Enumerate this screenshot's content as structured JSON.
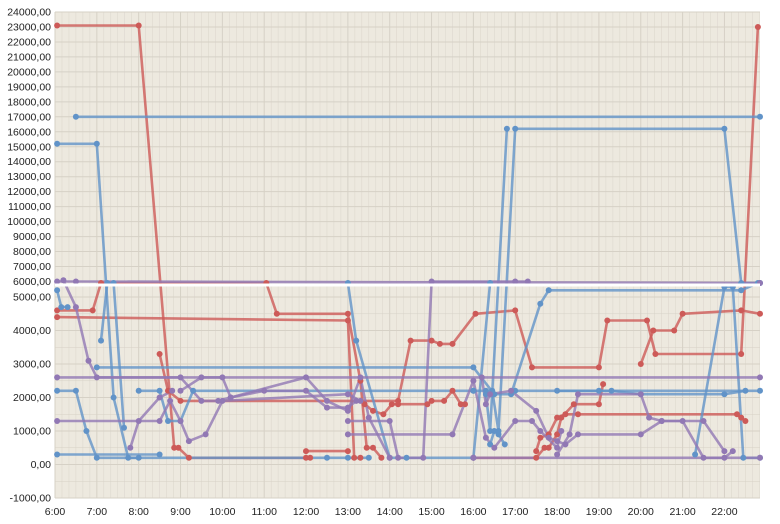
{
  "chart_data": {
    "type": "line",
    "title": "",
    "xlabel": "",
    "ylabel": "",
    "axis_break": {
      "lower_max": 5000,
      "upper_min": 6000
    },
    "y_ticks_upper": [
      "6000,00",
      "7000,00",
      "8000,00",
      "9000,00",
      "10000,00",
      "11000,00",
      "12000,00",
      "13000,00",
      "14000,00",
      "15000,00",
      "16000,00",
      "17000,00",
      "18000,00",
      "19000,00",
      "20000,00",
      "21000,00",
      "22000,00",
      "23000,00",
      "24000,00"
    ],
    "y_ticks_lower": [
      "-1000,00",
      "0,00",
      "1000,00",
      "2000,00",
      "3000,00",
      "4000,00",
      "5000,00"
    ],
    "x_ticks": [
      "6:00",
      "7:00",
      "8:00",
      "9:00",
      "10:00",
      "11:00",
      "12:00",
      "13:00",
      "14:00",
      "15:00",
      "16:00",
      "17:00",
      "18:00",
      "19:00",
      "20:00",
      "21:00",
      "22:00"
    ],
    "ylim_upper": [
      5900,
      24000
    ],
    "ylim_lower": [
      -1000,
      5300
    ],
    "xlim_hours": [
      6,
      22.85
    ],
    "grid": true,
    "legend": "none",
    "colors": {
      "red": "#cd5a58",
      "blue": "#6193c8",
      "purple": "#9178b4",
      "background": "#ede9df",
      "grid": "#d6d1c6"
    },
    "series": [
      {
        "color": "red",
        "points": [
          [
            6.05,
            23100
          ],
          [
            8.0,
            23100
          ],
          [
            8.85,
            500
          ],
          [
            8.95,
            500
          ],
          [
            9.2,
            200
          ],
          [
            12.0,
            200
          ],
          [
            12.1,
            200
          ]
        ]
      },
      {
        "color": "red",
        "points": [
          [
            6.05,
            4600
          ],
          [
            6.9,
            4600
          ],
          [
            7.1,
            5900
          ],
          [
            11.05,
            5900
          ],
          [
            11.3,
            4500
          ],
          [
            13.0,
            4500
          ],
          [
            13.3,
            2500
          ],
          [
            13.45,
            500
          ],
          [
            13.6,
            500
          ],
          [
            13.8,
            200
          ]
        ]
      },
      {
        "color": "red",
        "points": [
          [
            6.05,
            4400
          ],
          [
            13.0,
            4300
          ],
          [
            13.15,
            200
          ],
          [
            13.3,
            200
          ]
        ]
      },
      {
        "color": "red",
        "points": [
          [
            8.5,
            3300
          ],
          [
            8.7,
            2200
          ],
          [
            9.0,
            1900
          ],
          [
            14.2,
            1900
          ],
          [
            14.5,
            3700
          ],
          [
            15.0,
            3700
          ],
          [
            15.2,
            3600
          ],
          [
            15.5,
            3600
          ],
          [
            16.05,
            4500
          ],
          [
            17.0,
            4600
          ],
          [
            17.4,
            2900
          ],
          [
            19.0,
            2900
          ],
          [
            19.2,
            4300
          ],
          [
            20.15,
            4300
          ],
          [
            20.35,
            3300
          ],
          [
            22.4,
            3300
          ],
          [
            22.8,
            23000
          ]
        ]
      },
      {
        "color": "red",
        "points": [
          [
            12.0,
            400
          ],
          [
            13.0,
            400
          ]
        ]
      },
      {
        "color": "red",
        "points": [
          [
            13.4,
            1800
          ],
          [
            13.6,
            1600
          ],
          [
            13.85,
            1500
          ],
          [
            14.05,
            1800
          ],
          [
            14.2,
            1800
          ],
          [
            14.9,
            1800
          ],
          [
            15.0,
            1900
          ],
          [
            15.3,
            1900
          ],
          [
            15.5,
            2200
          ],
          [
            15.7,
            1800
          ],
          [
            15.8,
            1800
          ]
        ]
      },
      {
        "color": "red",
        "points": [
          [
            16.0,
            200
          ],
          [
            17.5,
            200
          ],
          [
            17.7,
            500
          ],
          [
            17.8,
            500
          ],
          [
            18.0,
            900
          ],
          [
            18.1,
            1400
          ],
          [
            18.4,
            1800
          ],
          [
            19.0,
            1800
          ],
          [
            19.1,
            2400
          ]
        ]
      },
      {
        "color": "red",
        "points": [
          [
            17.5,
            400
          ],
          [
            17.6,
            800
          ],
          [
            17.8,
            900
          ],
          [
            18.0,
            1400
          ],
          [
            18.2,
            1500
          ],
          [
            18.5,
            1500
          ],
          [
            22.3,
            1500
          ],
          [
            22.4,
            1400
          ],
          [
            22.5,
            1300
          ]
        ]
      },
      {
        "color": "red",
        "points": [
          [
            20.0,
            3000
          ],
          [
            20.3,
            4000
          ],
          [
            20.8,
            4000
          ],
          [
            21.0,
            4500
          ],
          [
            22.4,
            4600
          ],
          [
            22.85,
            4500
          ]
        ]
      },
      {
        "color": "blue",
        "points": [
          [
            6.05,
            15200
          ],
          [
            7.0,
            15200
          ],
          [
            7.4,
            2000
          ],
          [
            7.75,
            200
          ],
          [
            12.5,
            200
          ],
          [
            13.0,
            200
          ],
          [
            13.5,
            200
          ]
        ]
      },
      {
        "color": "blue",
        "points": [
          [
            6.05,
            5200
          ],
          [
            6.15,
            4700
          ],
          [
            6.3,
            4700
          ]
        ]
      },
      {
        "color": "blue",
        "points": [
          [
            6.5,
            17000
          ],
          [
            22.85,
            17000
          ]
        ]
      },
      {
        "color": "blue",
        "points": [
          [
            6.05,
            2200
          ],
          [
            6.5,
            2200
          ],
          [
            6.75,
            1000
          ],
          [
            7.0,
            200
          ],
          [
            8.0,
            200
          ]
        ]
      },
      {
        "color": "blue",
        "points": [
          [
            6.05,
            300
          ],
          [
            8.5,
            300
          ]
        ]
      },
      {
        "color": "blue",
        "points": [
          [
            7.0,
            2900
          ],
          [
            16.0,
            2900
          ],
          [
            16.5,
            2100
          ],
          [
            16.9,
            2100
          ],
          [
            17.6,
            4800
          ],
          [
            17.8,
            5200
          ],
          [
            22.4,
            5200
          ],
          [
            22.8,
            5900
          ],
          [
            22.85,
            5900
          ]
        ]
      },
      {
        "color": "blue",
        "points": [
          [
            7.1,
            3700
          ],
          [
            7.25,
            5900
          ],
          [
            7.4,
            5900
          ],
          [
            7.65,
            1100
          ]
        ]
      },
      {
        "color": "blue",
        "points": [
          [
            8.0,
            2200
          ],
          [
            8.5,
            2200
          ],
          [
            8.7,
            1300
          ],
          [
            9.0,
            1300
          ],
          [
            9.3,
            2200
          ],
          [
            16.0,
            2200
          ]
        ]
      },
      {
        "color": "blue",
        "points": [
          [
            13.0,
            5900
          ],
          [
            13.2,
            3700
          ],
          [
            14.0,
            200
          ],
          [
            14.4,
            200
          ],
          [
            16.0,
            200
          ],
          [
            16.4,
            5900
          ]
        ]
      },
      {
        "color": "blue",
        "points": [
          [
            16.0,
            2200
          ],
          [
            16.3,
            2200
          ],
          [
            16.45,
            2200
          ],
          [
            16.6,
            1000
          ],
          [
            17.0,
            16200
          ],
          [
            22.0,
            16200
          ],
          [
            22.4,
            5900
          ],
          [
            22.85,
            5900
          ]
        ]
      },
      {
        "color": "blue",
        "points": [
          [
            16.3,
            2100
          ],
          [
            16.4,
            1000
          ],
          [
            16.8,
            16200
          ]
        ]
      },
      {
        "color": "blue",
        "points": [
          [
            16.4,
            600
          ],
          [
            16.5,
            1000
          ],
          [
            16.6,
            900
          ],
          [
            16.75,
            600
          ]
        ]
      },
      {
        "color": "blue",
        "points": [
          [
            17.0,
            2200
          ],
          [
            22.85,
            2200
          ]
        ]
      },
      {
        "color": "blue",
        "points": [
          [
            18.0,
            2200
          ],
          [
            19.0,
            2200
          ],
          [
            19.3,
            2200
          ],
          [
            20.0,
            2100
          ],
          [
            22.0,
            2100
          ],
          [
            22.5,
            2200
          ]
        ]
      },
      {
        "color": "blue",
        "points": [
          [
            21.3,
            300
          ],
          [
            22.0,
            5300
          ],
          [
            22.2,
            5300
          ],
          [
            22.45,
            200
          ],
          [
            22.85,
            200
          ]
        ]
      },
      {
        "color": "purple",
        "points": [
          [
            6.05,
            6000
          ],
          [
            6.5,
            6000
          ],
          [
            22.85,
            5900
          ]
        ]
      },
      {
        "color": "purple",
        "points": [
          [
            6.2,
            5500
          ],
          [
            6.5,
            4700
          ],
          [
            6.8,
            3100
          ],
          [
            7.0,
            2600
          ],
          [
            9.0,
            2600
          ],
          [
            9.5,
            1900
          ],
          [
            9.9,
            1900
          ],
          [
            10.2,
            2000
          ],
          [
            12.0,
            2600
          ],
          [
            12.5,
            1900
          ],
          [
            13.0,
            1600
          ],
          [
            13.3,
            2600
          ],
          [
            13.5,
            1400
          ],
          [
            14.0,
            200
          ]
        ]
      },
      {
        "color": "purple",
        "points": [
          [
            6.05,
            1300
          ],
          [
            8.5,
            1300
          ],
          [
            8.75,
            1900
          ],
          [
            9.0,
            1300
          ],
          [
            9.2,
            700
          ],
          [
            9.6,
            900
          ],
          [
            10.0,
            1900
          ],
          [
            13.0,
            2100
          ],
          [
            13.3,
            1900
          ]
        ]
      },
      {
        "color": "purple",
        "points": [
          [
            6.05,
            2600
          ],
          [
            22.85,
            2600
          ]
        ]
      },
      {
        "color": "purple",
        "points": [
          [
            7.8,
            500
          ],
          [
            8.0,
            1300
          ],
          [
            8.5,
            2000
          ],
          [
            8.8,
            2200
          ]
        ]
      },
      {
        "color": "purple",
        "points": [
          [
            9.0,
            2200
          ],
          [
            9.5,
            2600
          ],
          [
            10.0,
            2600
          ],
          [
            10.2,
            2000
          ],
          [
            11.0,
            2200
          ],
          [
            12.0,
            2200
          ],
          [
            12.5,
            1700
          ],
          [
            13.0,
            1700
          ],
          [
            13.2,
            1900
          ]
        ]
      },
      {
        "color": "purple",
        "points": [
          [
            13.0,
            1300
          ],
          [
            14.0,
            1300
          ],
          [
            14.2,
            200
          ],
          [
            14.8,
            200
          ],
          [
            15.0,
            6000
          ],
          [
            17.0,
            6000
          ],
          [
            17.3,
            6000
          ]
        ]
      },
      {
        "color": "purple",
        "points": [
          [
            13.0,
            900
          ],
          [
            15.5,
            900
          ],
          [
            16.0,
            2500
          ],
          [
            16.3,
            800
          ],
          [
            16.5,
            500
          ],
          [
            17.0,
            1300
          ],
          [
            17.4,
            1300
          ],
          [
            17.6,
            1000
          ],
          [
            18.0,
            500
          ],
          [
            18.1,
            1000
          ]
        ]
      },
      {
        "color": "purple",
        "points": [
          [
            16.2,
            2600
          ],
          [
            16.3,
            1800
          ],
          [
            16.4,
            2100
          ],
          [
            16.9,
            2200
          ],
          [
            17.5,
            1600
          ],
          [
            17.8,
            800
          ],
          [
            18.0,
            700
          ],
          [
            18.2,
            600
          ],
          [
            18.5,
            900
          ],
          [
            20.0,
            900
          ],
          [
            20.5,
            1300
          ],
          [
            21.0,
            1300
          ],
          [
            21.5,
            200
          ],
          [
            22.0,
            200
          ],
          [
            22.2,
            400
          ]
        ]
      },
      {
        "color": "purple",
        "points": [
          [
            16.0,
            200
          ],
          [
            22.85,
            200
          ]
        ]
      },
      {
        "color": "purple",
        "points": [
          [
            18.0,
            300
          ],
          [
            18.3,
            900
          ],
          [
            18.5,
            2100
          ],
          [
            20.0,
            2100
          ],
          [
            20.2,
            1400
          ],
          [
            20.5,
            1300
          ],
          [
            21.5,
            1300
          ],
          [
            22.0,
            400
          ]
        ]
      }
    ]
  }
}
